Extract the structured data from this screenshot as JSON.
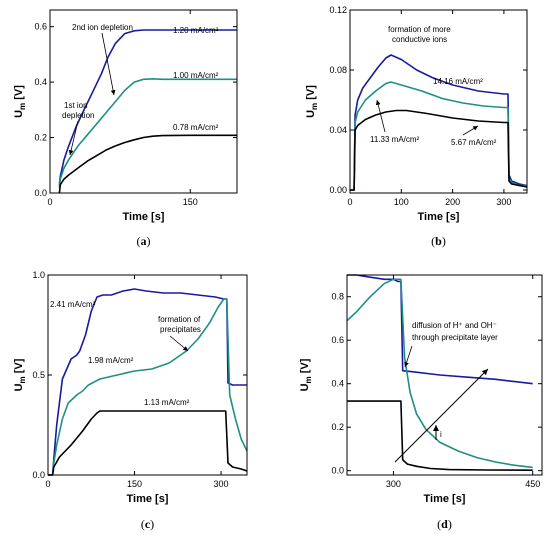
{
  "colors": {
    "dark_blue": "#1a1aa0",
    "teal": "#1f8f86",
    "black": "#000000"
  },
  "chart_data": [
    {
      "type": "line",
      "caption": "(a)",
      "xlabel": "Time [s]",
      "ylabel": "U",
      "ylabel_sub": "m",
      "ylabel_unit": " [V]",
      "xlim": [
        0,
        200
      ],
      "ylim": [
        0,
        0.66
      ],
      "xticks": [
        0,
        150
      ],
      "xtick_labels": [
        "0",
        "150"
      ],
      "yticks": [
        0,
        0.2,
        0.4,
        0.6
      ],
      "ytick_labels": [
        "0.0",
        "0.2",
        "0.4",
        "0.6"
      ],
      "series": [
        {
          "name": "1.20 mA/cm²",
          "color": "#1a1aa0",
          "x": [
            10,
            11,
            15,
            20,
            28,
            35,
            45,
            55,
            62,
            70,
            80,
            90,
            100,
            110,
            130,
            150,
            180,
            200
          ],
          "y": [
            0.03,
            0.06,
            0.12,
            0.17,
            0.24,
            0.29,
            0.36,
            0.43,
            0.49,
            0.54,
            0.575,
            0.585,
            0.588,
            0.588,
            0.588,
            0.588,
            0.588,
            0.588
          ]
        },
        {
          "name": "1.00 mA/cm²",
          "color": "#1f8f86",
          "x": [
            10,
            11,
            15,
            20,
            30,
            40,
            50,
            60,
            70,
            80,
            90,
            100,
            110,
            120,
            150,
            180,
            200
          ],
          "y": [
            0.02,
            0.05,
            0.09,
            0.12,
            0.17,
            0.21,
            0.25,
            0.29,
            0.33,
            0.37,
            0.4,
            0.41,
            0.412,
            0.41,
            0.41,
            0.41,
            0.41
          ]
        },
        {
          "name": "0.78 mA/cm²",
          "color": "#000000",
          "x": [
            10,
            11,
            15,
            20,
            30,
            40,
            50,
            60,
            70,
            80,
            90,
            100,
            110,
            120,
            150,
            200
          ],
          "y": [
            0.0,
            0.03,
            0.05,
            0.065,
            0.09,
            0.115,
            0.135,
            0.155,
            0.17,
            0.182,
            0.192,
            0.2,
            0.205,
            0.207,
            0.208,
            0.208
          ]
        }
      ],
      "annotations": [
        {
          "text": "2nd ion depletion"
        },
        {
          "text": "1st ion"
        },
        {
          "text": "depletion"
        }
      ]
    },
    {
      "type": "line",
      "caption": "(b)",
      "xlabel": "Time [s]",
      "ylabel": "U",
      "ylabel_sub": "m",
      "ylabel_unit": " [V]",
      "xlim": [
        0,
        345
      ],
      "ylim": [
        -0.002,
        0.12
      ],
      "xticks": [
        0,
        100,
        200,
        300
      ],
      "xtick_labels": [
        "0",
        "100",
        "200",
        "300"
      ],
      "yticks": [
        0,
        0.04,
        0.08,
        0.12
      ],
      "ytick_labels": [
        "0.00",
        "0.04",
        "0.08",
        "0.12"
      ],
      "series": [
        {
          "name": "14.16 mA/cm²",
          "color": "#1a1aa0",
          "x": [
            0,
            8,
            10,
            15,
            25,
            40,
            55,
            70,
            80,
            100,
            130,
            160,
            200,
            250,
            300,
            308,
            310,
            315,
            330,
            345
          ],
          "y": [
            0,
            0,
            0.05,
            0.06,
            0.068,
            0.075,
            0.082,
            0.088,
            0.09,
            0.087,
            0.08,
            0.075,
            0.07,
            0.066,
            0.064,
            0.064,
            0.01,
            0.006,
            0.004,
            0.003
          ]
        },
        {
          "name": "11.33 mA/cm²",
          "color": "#1f8f86",
          "x": [
            0,
            8,
            10,
            15,
            30,
            50,
            70,
            80,
            100,
            140,
            180,
            220,
            260,
            300,
            308,
            310,
            315,
            330,
            345
          ],
          "y": [
            0,
            0,
            0.045,
            0.052,
            0.06,
            0.066,
            0.071,
            0.072,
            0.07,
            0.066,
            0.061,
            0.058,
            0.056,
            0.055,
            0.055,
            0.008,
            0.005,
            0.003,
            0.003
          ]
        },
        {
          "name": "5.67 mA/cm²",
          "color": "#000000",
          "x": [
            0,
            8,
            10,
            15,
            30,
            50,
            70,
            90,
            110,
            150,
            200,
            250,
            300,
            308,
            310,
            315,
            330,
            345
          ],
          "y": [
            0,
            0,
            0.04,
            0.043,
            0.047,
            0.05,
            0.052,
            0.053,
            0.053,
            0.051,
            0.048,
            0.046,
            0.045,
            0.045,
            0.006,
            0.004,
            0.003,
            0.002
          ]
        }
      ],
      "annotations": [
        {
          "text": "formation of more"
        },
        {
          "text": "conductive ions"
        }
      ]
    },
    {
      "type": "line",
      "caption": "(c)",
      "xlabel": "Time [s]",
      "ylabel": "U",
      "ylabel_sub": "m",
      "ylabel_unit": " [V]",
      "xlim": [
        0,
        345
      ],
      "ylim": [
        0,
        1.0
      ],
      "xticks": [
        0,
        150,
        300
      ],
      "xtick_labels": [
        "0",
        "150",
        "300"
      ],
      "yticks": [
        0,
        0.5,
        1.0
      ],
      "ytick_labels": [
        "0.0",
        "0.5",
        "1.0"
      ],
      "series": [
        {
          "name": "2.41 mA/cm²",
          "color": "#1a1aa0",
          "x": [
            0,
            8,
            10,
            15,
            25,
            40,
            50,
            55,
            65,
            75,
            85,
            95,
            110,
            130,
            150,
            170,
            200,
            230,
            260,
            290,
            305,
            310,
            312,
            320,
            330,
            345
          ],
          "y": [
            0,
            0,
            0.08,
            0.25,
            0.48,
            0.58,
            0.6,
            0.62,
            0.7,
            0.82,
            0.89,
            0.9,
            0.9,
            0.92,
            0.93,
            0.92,
            0.91,
            0.91,
            0.9,
            0.89,
            0.88,
            0.88,
            0.46,
            0.45,
            0.45,
            0.45
          ]
        },
        {
          "name": "1.98 mA/cm²",
          "color": "#1f8f86",
          "x": [
            0,
            8,
            10,
            15,
            25,
            35,
            50,
            60,
            70,
            90,
            120,
            150,
            180,
            210,
            240,
            260,
            280,
            295,
            305,
            310,
            315,
            325,
            335,
            345
          ],
          "y": [
            0,
            0,
            0.06,
            0.15,
            0.28,
            0.36,
            0.4,
            0.42,
            0.45,
            0.48,
            0.5,
            0.52,
            0.53,
            0.56,
            0.62,
            0.68,
            0.76,
            0.84,
            0.88,
            0.88,
            0.4,
            0.28,
            0.18,
            0.12
          ]
        },
        {
          "name": "1.13 mA/cm²",
          "color": "#000000",
          "x": [
            0,
            8,
            10,
            20,
            40,
            60,
            75,
            85,
            90,
            120,
            160,
            200,
            250,
            290,
            305,
            308,
            312,
            320,
            335,
            345
          ],
          "y": [
            0,
            0,
            0.04,
            0.09,
            0.15,
            0.22,
            0.28,
            0.31,
            0.32,
            0.32,
            0.32,
            0.32,
            0.32,
            0.32,
            0.32,
            0.32,
            0.06,
            0.04,
            0.03,
            0.02
          ]
        }
      ],
      "annotations": [
        {
          "text": "formation of"
        },
        {
          "text": "precipitates"
        }
      ]
    },
    {
      "type": "line",
      "caption": "(d)",
      "xlabel": "Time [s]",
      "ylabel": "U",
      "ylabel_sub": "m",
      "ylabel_unit": " [V]",
      "xlim": [
        250,
        460
      ],
      "ylim": [
        -0.02,
        0.9
      ],
      "xticks": [
        300,
        450
      ],
      "xtick_labels": [
        "300",
        "450"
      ],
      "yticks": [
        0,
        0.2,
        0.4,
        0.6,
        0.8
      ],
      "ytick_labels": [
        "0.0",
        "0.2",
        "0.4",
        "0.6",
        "0.8"
      ],
      "series": [
        {
          "name": "blue",
          "color": "#1a1aa0",
          "x": [
            250,
            260,
            275,
            290,
            300,
            305,
            308,
            310,
            320,
            350,
            380,
            410,
            440,
            450
          ],
          "y": [
            0.9,
            0.9,
            0.89,
            0.88,
            0.88,
            0.87,
            0.87,
            0.46,
            0.455,
            0.44,
            0.43,
            0.42,
            0.405,
            0.4
          ]
        },
        {
          "name": "teal",
          "color": "#1f8f86",
          "x": [
            250,
            260,
            275,
            290,
            300,
            305,
            308,
            312,
            318,
            325,
            335,
            350,
            370,
            390,
            410,
            430,
            450
          ],
          "y": [
            0.69,
            0.73,
            0.8,
            0.86,
            0.88,
            0.88,
            0.88,
            0.52,
            0.36,
            0.26,
            0.19,
            0.13,
            0.09,
            0.06,
            0.04,
            0.025,
            0.015
          ]
        },
        {
          "name": "black",
          "color": "#000000",
          "x": [
            250,
            270,
            290,
            305,
            308,
            310,
            315,
            325,
            340,
            360,
            400,
            450
          ],
          "y": [
            0.32,
            0.32,
            0.32,
            0.32,
            0.32,
            0.05,
            0.03,
            0.02,
            0.01,
            0.005,
            0.003,
            0.002
          ]
        }
      ],
      "annotations": [
        {
          "text": "diffusion of H⁺ and OH⁻"
        },
        {
          "text": "through precipitate layer"
        },
        {
          "text": "i"
        }
      ]
    }
  ],
  "labels": {
    "a": {
      "l120": "1.20 mA/cm²",
      "l100": "1.00 mA/cm²",
      "l078": "0.78 mA/cm²"
    },
    "b": {
      "l1416": "14.16 mA/cm²",
      "l1133": "11.33 mA/cm²",
      "l567": "5.67 mA/cm²"
    },
    "c": {
      "l241": "2.41 mA/cm²",
      "l198": "1.98 mA/cm²",
      "l113": "1.13 mA/cm²"
    }
  }
}
